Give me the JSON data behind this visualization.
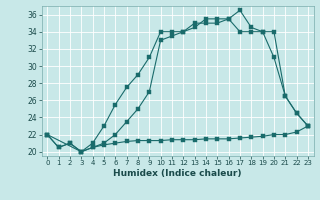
{
  "title": "",
  "xlabel": "Humidex (Indice chaleur)",
  "bg_color": "#c8e8e8",
  "line_color": "#1a6b6b",
  "xlim": [
    -0.5,
    23.5
  ],
  "ylim": [
    19.5,
    37.0
  ],
  "xticks": [
    0,
    1,
    2,
    3,
    4,
    5,
    6,
    7,
    8,
    9,
    10,
    11,
    12,
    13,
    14,
    15,
    16,
    17,
    18,
    19,
    20,
    21,
    22,
    23
  ],
  "yticks": [
    20,
    22,
    24,
    26,
    28,
    30,
    32,
    34,
    36
  ],
  "line1_x": [
    0,
    1,
    2,
    3,
    4,
    5,
    6,
    7,
    8,
    9,
    10,
    11,
    12,
    13,
    14,
    15,
    16,
    17,
    18,
    19,
    20,
    21,
    22,
    23
  ],
  "line1_y": [
    22,
    20.5,
    21,
    20.0,
    20.5,
    20.8,
    21.0,
    21.2,
    21.3,
    21.3,
    21.3,
    21.4,
    21.4,
    21.4,
    21.5,
    21.5,
    21.5,
    21.6,
    21.7,
    21.8,
    22.0,
    22.0,
    22.3,
    23.0
  ],
  "line2_x": [
    0,
    1,
    2,
    3,
    4,
    5,
    6,
    7,
    8,
    9,
    10,
    11,
    12,
    13,
    14,
    15,
    16,
    17,
    18,
    19,
    20,
    21,
    22,
    23
  ],
  "line2_y": [
    22,
    20.5,
    21,
    20.0,
    21.0,
    23.0,
    25.5,
    27.5,
    29.0,
    31.0,
    34.0,
    34.0,
    34.0,
    35.0,
    35.0,
    35.0,
    35.5,
    34.0,
    34.0,
    34.0,
    31.0,
    26.5,
    24.5,
    23.0
  ],
  "line3_x": [
    0,
    3,
    4,
    5,
    6,
    7,
    8,
    9,
    10,
    11,
    12,
    13,
    14,
    15,
    16,
    17,
    18,
    19,
    20,
    21,
    22,
    23
  ],
  "line3_y": [
    22,
    20.0,
    20.5,
    21.0,
    22.0,
    23.5,
    25.0,
    27.0,
    33.0,
    33.5,
    34.0,
    34.5,
    35.5,
    35.5,
    35.5,
    36.5,
    34.5,
    34.0,
    34.0,
    26.5,
    24.5,
    23.0
  ]
}
